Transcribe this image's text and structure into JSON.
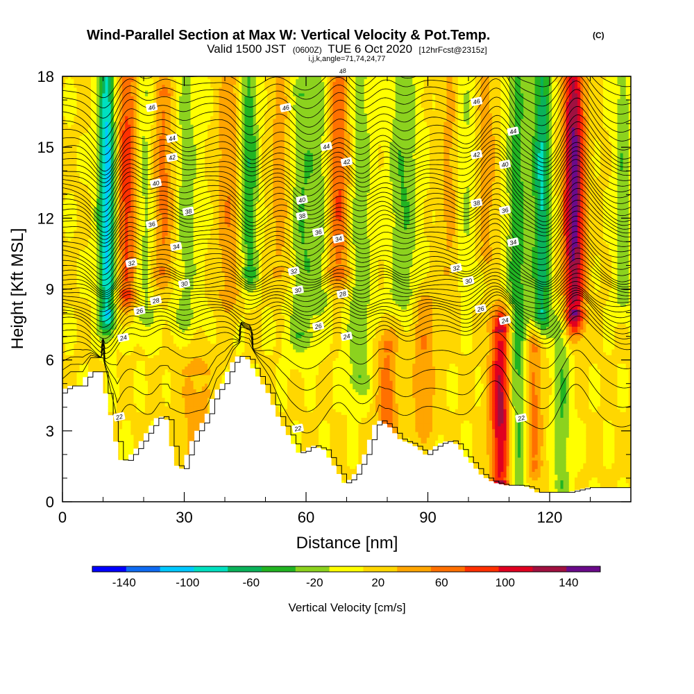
{
  "title": {
    "main": "Wind-Parallel Section at Max W: Vertical Velocity & Pot.Temp.",
    "mark": "(C)",
    "sub_a": "Valid 1500 JST",
    "sub_b": "(0600Z)",
    "sub_c": "TUE 6 Oct 2020",
    "sub_d": "[12hrFcst@2315z]",
    "sub2": "i,j,k,angle=71,74,24,77"
  },
  "chart_data": {
    "type": "heatmap",
    "xlabel": "Distance [nm]",
    "ylabel": "Height [Kft MSL]",
    "xlim": [
      0,
      140
    ],
    "ylim": [
      0,
      18
    ],
    "x_ticks": [
      "0",
      "30",
      "60",
      "90",
      "120"
    ],
    "x_tick_values": [
      0,
      30,
      60,
      90,
      120
    ],
    "y_ticks": [
      "0",
      "3",
      "6",
      "9",
      "12",
      "15",
      "18"
    ],
    "y_tick_values": [
      0,
      3,
      6,
      9,
      12,
      15,
      18
    ],
    "colorbar": {
      "title": "Vertical Velocity [cm/s]",
      "labels": [
        "-140",
        "-100",
        "-60",
        "-20",
        "20",
        "60",
        "100",
        "140"
      ],
      "label_values": [
        -140,
        -100,
        -60,
        -20,
        20,
        60,
        100,
        140
      ],
      "min": -160,
      "max": 160,
      "colors": [
        "#0000ff",
        "#0f6bf2",
        "#00c8ff",
        "#00e0c0",
        "#0ab25a",
        "#22b422",
        "#8cd21e",
        "#ffff00",
        "#ffd700",
        "#ffa500",
        "#ff7000",
        "#ff3000",
        "#e00020",
        "#a01040",
        "#6a0a8a"
      ]
    },
    "terrain_kft": [
      [
        0,
        4.6
      ],
      [
        2,
        4.9
      ],
      [
        5,
        4.9
      ],
      [
        7,
        5.5
      ],
      [
        10,
        5.5
      ],
      [
        13,
        3.3
      ],
      [
        14.5,
        1.8
      ],
      [
        16,
        1.7
      ],
      [
        19,
        2.3
      ],
      [
        22,
        3.1
      ],
      [
        24,
        3.6
      ],
      [
        26,
        3.6
      ],
      [
        27,
        3.1
      ],
      [
        28,
        1.6
      ],
      [
        30,
        1.4
      ],
      [
        33,
        2.8
      ],
      [
        36,
        3.6
      ],
      [
        38,
        4.6
      ],
      [
        40,
        5.0
      ],
      [
        42,
        5.8
      ],
      [
        44,
        6.2
      ],
      [
        46,
        6.1
      ],
      [
        48,
        5.5
      ],
      [
        51,
        4.7
      ],
      [
        54,
        3.5
      ],
      [
        57,
        2.6
      ],
      [
        59,
        2.0
      ],
      [
        62,
        2.4
      ],
      [
        65,
        2.2
      ],
      [
        68,
        1.4
      ],
      [
        70,
        0.8
      ],
      [
        72,
        1.0
      ],
      [
        75,
        2.0
      ],
      [
        78,
        3.5
      ],
      [
        81,
        3.2
      ],
      [
        84,
        2.6
      ],
      [
        86,
        2.5
      ],
      [
        88,
        2.3
      ],
      [
        90,
        2.0
      ],
      [
        92,
        2.3
      ],
      [
        94,
        2.5
      ],
      [
        96,
        2.6
      ],
      [
        98,
        2.4
      ],
      [
        100,
        1.9
      ],
      [
        102,
        1.5
      ],
      [
        104,
        1.1
      ],
      [
        107,
        0.8
      ],
      [
        110,
        0.7
      ],
      [
        113,
        0.7
      ],
      [
        116,
        0.6
      ],
      [
        117,
        0.4
      ],
      [
        120,
        0.4
      ],
      [
        125,
        0.4
      ],
      [
        130,
        0.6
      ],
      [
        134,
        0.6
      ],
      [
        140,
        0.6
      ]
    ],
    "updrafts": [
      {
        "x": 16,
        "z0": 0.5,
        "z1": 1.0,
        "amp": 80,
        "width": 2.0
      },
      {
        "x": 25,
        "z0": 0.55,
        "z1": 0.95,
        "amp": 55,
        "width": 2.2
      },
      {
        "x": 33,
        "z0": 0.0,
        "z1": 0.3,
        "amp": 30,
        "width": 3.0
      },
      {
        "x": 41,
        "z0": 0.5,
        "z1": 1.0,
        "amp": 40,
        "width": 2.0
      },
      {
        "x": 54,
        "z0": 0.55,
        "z1": 1.0,
        "amp": 35,
        "width": 2.0
      },
      {
        "x": 68,
        "z0": 0.55,
        "z1": 1.0,
        "amp": 70,
        "width": 2.4
      },
      {
        "x": 80,
        "z0": 0.1,
        "z1": 0.35,
        "amp": 55,
        "width": 1.8
      },
      {
        "x": 89,
        "z0": 0.2,
        "z1": 0.45,
        "amp": 40,
        "width": 2.0
      },
      {
        "x": 96,
        "z0": 0.55,
        "z1": 1.0,
        "amp": 40,
        "width": 2.0
      },
      {
        "x": 108,
        "z0": 0.05,
        "z1": 0.4,
        "amp": 115,
        "width": 1.8
      },
      {
        "x": 116,
        "z0": 0.1,
        "z1": 0.35,
        "amp": 55,
        "width": 1.5
      },
      {
        "x": 126,
        "z0": 0.45,
        "z1": 1.0,
        "amp": 140,
        "width": 1.8
      },
      {
        "x": 104,
        "z0": 0.6,
        "z1": 1.0,
        "amp": 35,
        "width": 2.0
      }
    ],
    "downdrafts": [
      {
        "x": 11,
        "z0": 0.45,
        "z1": 1.0,
        "amp": -125,
        "width": 1.5
      },
      {
        "x": 20,
        "z0": 0.45,
        "z1": 0.95,
        "amp": -40,
        "width": 2.0
      },
      {
        "x": 30,
        "z0": 0.45,
        "z1": 1.0,
        "amp": -35,
        "width": 2.5
      },
      {
        "x": 46,
        "z0": 0.55,
        "z1": 1.0,
        "amp": -65,
        "width": 1.5
      },
      {
        "x": 59,
        "z0": 0.4,
        "z1": 0.95,
        "amp": -45,
        "width": 2.5
      },
      {
        "x": 64,
        "z0": 0.5,
        "z1": 1.0,
        "amp": -40,
        "width": 1.8
      },
      {
        "x": 73,
        "z0": 0.3,
        "z1": 1.0,
        "amp": -45,
        "width": 2.2
      },
      {
        "x": 84,
        "z0": 0.5,
        "z1": 1.0,
        "amp": -45,
        "width": 2.5
      },
      {
        "x": 99,
        "z0": 0.55,
        "z1": 1.0,
        "amp": -35,
        "width": 2.5
      },
      {
        "x": 112,
        "z0": 0.0,
        "z1": 1.0,
        "amp": -60,
        "width": 1.8
      },
      {
        "x": 118,
        "z0": 0.45,
        "z1": 1.0,
        "amp": -90,
        "width": 1.6
      },
      {
        "x": 123,
        "z0": 0.05,
        "z1": 0.4,
        "amp": -45,
        "width": 1.5
      },
      {
        "x": 138,
        "z0": 0.5,
        "z1": 1.0,
        "amp": -40,
        "width": 1.5
      }
    ],
    "theta_contours_C": [
      {
        "value": 22,
        "label": "22",
        "base_kft": 3.5,
        "dip_kft": 0.8
      },
      {
        "value": 24,
        "label": "24",
        "base_kft": 6.8,
        "dip_kft": 0.6
      },
      {
        "value": 26,
        "label": "26",
        "base_kft": 7.7,
        "dip_kft": 0.5
      },
      {
        "value": 28,
        "label": "28",
        "base_kft": 8.4,
        "dip_kft": 0.4
      },
      {
        "value": 30,
        "label": "30",
        "base_kft": 9.1,
        "dip_kft": 0.45
      },
      {
        "value": 32,
        "label": "32",
        "base_kft": 9.7,
        "dip_kft": 0.5
      },
      {
        "value": 34,
        "label": "34",
        "base_kft": 10.6,
        "dip_kft": 0.55
      },
      {
        "value": 36,
        "label": "36",
        "base_kft": 11.5,
        "dip_kft": 0.6
      },
      {
        "value": 38,
        "label": "38",
        "base_kft": 12.3,
        "dip_kft": 0.6
      },
      {
        "value": 40,
        "label": "40",
        "base_kft": 13.2,
        "dip_kft": 0.65
      },
      {
        "value": 42,
        "label": "42",
        "base_kft": 14.1,
        "dip_kft": 0.65
      },
      {
        "value": 44,
        "label": "44",
        "base_kft": 15.0,
        "dip_kft": 0.7
      },
      {
        "value": 46,
        "label": "46",
        "base_kft": 16.4,
        "dip_kft": 0.7
      },
      {
        "value": 48,
        "label": "48",
        "base_kft": 17.8,
        "dip_kft": 0.6
      }
    ],
    "contour_label_x": {
      "22": [
        14,
        58,
        113
      ],
      "24": [
        15,
        70,
        109
      ],
      "26": [
        19,
        63,
        103
      ],
      "28": [
        23,
        69
      ],
      "30": [
        30,
        58,
        100
      ],
      "32": [
        17,
        57,
        97
      ],
      "34": [
        28,
        68,
        111
      ],
      "36": [
        22,
        63,
        109
      ],
      "38": [
        31,
        59,
        102
      ],
      "40": [
        23,
        59,
        109
      ],
      "42": [
        27,
        70,
        102
      ],
      "44": [
        27,
        65,
        111
      ],
      "46": [
        22,
        55,
        102
      ],
      "48": [
        69
      ]
    }
  }
}
